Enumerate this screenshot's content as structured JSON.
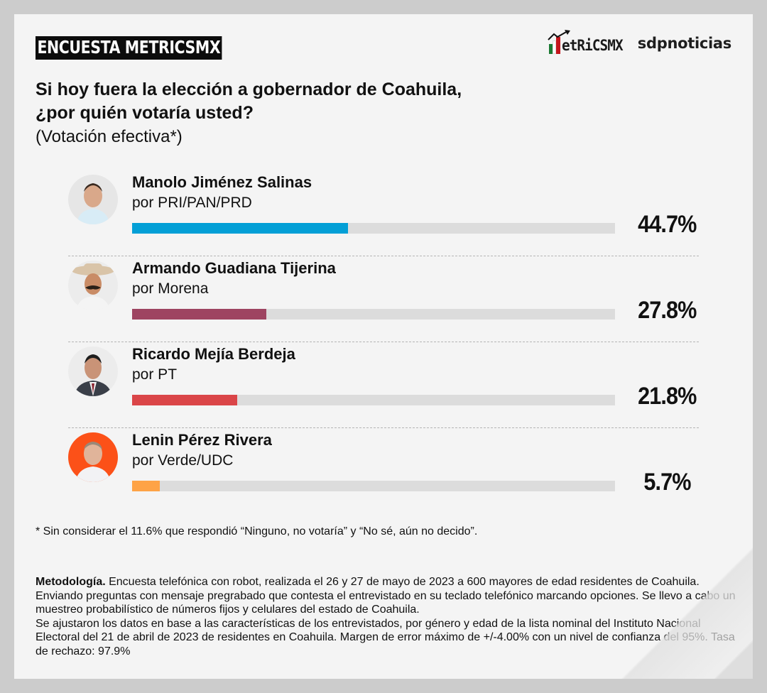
{
  "header": {
    "tag": "ENCUESTA METRICSMX",
    "logo_metrics": "METRICSMX",
    "logo_metrics_display": "etRiCSMX",
    "logo_sdp": "sdpnoticias"
  },
  "question": {
    "line1": "Si hoy fuera la elección a gobernador de Coahuila,",
    "line2": "¿por quién votaría usted?",
    "subtitle": "(Votación efectiva*)"
  },
  "candidates": [
    {
      "name": "Manolo Jiménez Salinas",
      "party": "por PRI/PAN/PRD",
      "value": 44.7,
      "label": "44.7%",
      "color": "#039fd6",
      "avatar_bg": "#e8e8e8"
    },
    {
      "name": "Armando Guadiana Tijerina",
      "party": "por Morena",
      "value": 27.8,
      "label": "27.8%",
      "color": "#9e4461",
      "avatar_bg": "#ececec"
    },
    {
      "name": "Ricardo Mejía Berdeja",
      "party": "por PT",
      "value": 21.8,
      "label": "21.8%",
      "color": "#da4548",
      "avatar_bg": "#ececec"
    },
    {
      "name": "Lenin Pérez Rivera",
      "party": "por Verde/UDC",
      "value": 5.7,
      "label": "5.7%",
      "color": "#fea346",
      "avatar_bg": "#fc5118"
    }
  ],
  "footnote": "* Sin considerar el 11.6% que respondió “Ninguno, no votaría” y “No sé, aún no decido”.",
  "methodology": {
    "label": "Metodología.",
    "text": " Encuesta telefónica con robot, realizada el 26 y 27 de mayo de 2023 a 600 mayores de edad residentes de Coahuila. Enviando preguntas con mensaje pregrabado que contesta el entrevistado en su teclado telefónico marcando opciones. Se llevo a cabo un muestreo probabilístico de números fijos y celulares del estado de Coahuila.",
    "text2": "Se ajustaron los datos en base a las características de los entrevistados, por género y edad de la lista nominal del Instituto Nacional Electoral del 21 de abril de 2023 de residentes en Coahuila. Margen de error máximo de +/-4.00% con un nivel de confianza del 95%. Tasa de rechazo: 97.9%"
  },
  "chart_data": {
    "type": "bar",
    "orientation": "horizontal",
    "title": "Si hoy fuera la elección a gobernador de Coahuila, ¿por quién votaría usted?",
    "subtitle": "(Votación efectiva*)",
    "categories": [
      "Manolo Jiménez Salinas (PRI/PAN/PRD)",
      "Armando Guadiana Tijerina (Morena)",
      "Ricardo Mejía Berdeja (PT)",
      "Lenin Pérez Rivera (Verde/UDC)"
    ],
    "values": [
      44.7,
      27.8,
      21.8,
      5.7
    ],
    "colors": [
      "#039fd6",
      "#9e4461",
      "#da4548",
      "#fea346"
    ],
    "xlabel": "",
    "ylabel": "",
    "xlim": [
      0,
      100
    ],
    "unit": "%",
    "grid": false,
    "legend": null
  }
}
